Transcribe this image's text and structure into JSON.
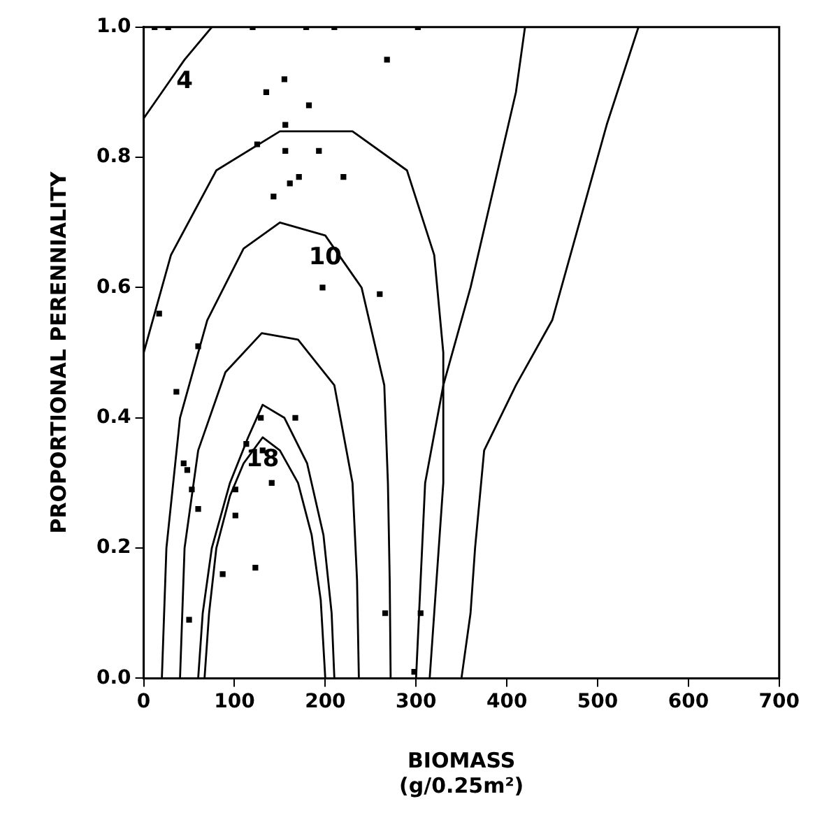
{
  "chart_data": {
    "type": "scatter",
    "xlabel": "BIOMASS\n(g/0.25m²)",
    "ylabel": "PROPORTIONAL PERENNIALITY",
    "xlim": [
      0,
      700
    ],
    "xticks": [
      0,
      100,
      200,
      300,
      400,
      500,
      600,
      700
    ],
    "ylim": [
      0,
      1
    ],
    "yticks": [
      {
        "value": 0,
        "label": "0.0"
      },
      0.2,
      0.4,
      0.6,
      0.8,
      {
        "value": 1,
        "label": "1.0"
      }
    ],
    "grid": false,
    "legend": false,
    "marker": "square",
    "series": [
      {
        "color": "#000000",
        "x": [
          12,
          27,
          120,
          179,
          210,
          302,
          268,
          155,
          135,
          182,
          156,
          125,
          156,
          193,
          171,
          220,
          161,
          143,
          197,
          260,
          17,
          60,
          36,
          129,
          167,
          113,
          131,
          44,
          48,
          141,
          53,
          101,
          60,
          101,
          87,
          123,
          266,
          305,
          50,
          298
        ],
        "values": [
          1.0,
          1.0,
          1.0,
          1.0,
          1.0,
          1.0,
          0.95,
          0.92,
          0.9,
          0.88,
          0.85,
          0.82,
          0.81,
          0.81,
          0.77,
          0.77,
          0.76,
          0.74,
          0.6,
          0.59,
          0.56,
          0.51,
          0.44,
          0.4,
          0.4,
          0.36,
          0.35,
          0.33,
          0.32,
          0.3,
          0.29,
          0.29,
          0.26,
          0.25,
          0.16,
          0.17,
          0.1,
          0.1,
          0.09,
          0.01
        ]
      },
      {
        "type": "line",
        "name": "18",
        "marker": "none",
        "color": "#000000",
        "x": [
          67,
          72,
          80,
          95,
          110,
          131,
          150,
          170,
          185,
          195,
          200
        ],
        "values": [
          0,
          0.1,
          0.2,
          0.28,
          0.33,
          0.37,
          0.35,
          0.3,
          0.22,
          0.12,
          0
        ]
      },
      {
        "type": "line",
        "marker": "none",
        "color": "#000000",
        "x": [
          60,
          65,
          75,
          95,
          115,
          131,
          155,
          180,
          198,
          207,
          210
        ],
        "values": [
          0,
          0.1,
          0.2,
          0.3,
          0.37,
          0.42,
          0.4,
          0.33,
          0.22,
          0.1,
          0
        ]
      },
      {
        "type": "line",
        "marker": "none",
        "color": "#000000",
        "x": [
          40,
          45,
          60,
          90,
          130,
          170,
          210,
          230,
          235,
          237
        ],
        "values": [
          0,
          0.2,
          0.35,
          0.47,
          0.53,
          0.52,
          0.45,
          0.3,
          0.15,
          0
        ]
      },
      {
        "type": "line",
        "name": "10",
        "marker": "none",
        "color": "#000000",
        "x": [
          20,
          25,
          40,
          70,
          110,
          150,
          200,
          240,
          265,
          269,
          271,
          272
        ],
        "values": [
          0,
          0.2,
          0.4,
          0.55,
          0.66,
          0.7,
          0.68,
          0.6,
          0.45,
          0.3,
          0.15,
          0
        ]
      },
      {
        "type": "line",
        "marker": "none",
        "color": "#000000",
        "x": [
          0,
          30,
          80,
          150,
          230,
          290,
          320,
          330,
          330,
          320,
          315
        ],
        "values": [
          0.5,
          0.65,
          0.78,
          0.84,
          0.84,
          0.78,
          0.65,
          0.5,
          0.3,
          0.1,
          0
        ]
      },
      {
        "type": "line",
        "name": "4",
        "marker": "none",
        "color": "#000000",
        "x": [
          0,
          20,
          45,
          75
        ],
        "values": [
          0.86,
          0.9,
          0.95,
          1.0
        ]
      },
      {
        "type": "line",
        "marker": "none",
        "color": "#000000",
        "x": [
          300,
          305,
          310,
          330,
          360,
          385,
          410,
          420
        ],
        "values": [
          0,
          0.15,
          0.3,
          0.45,
          0.6,
          0.75,
          0.9,
          1.0
        ]
      },
      {
        "type": "line",
        "marker": "none",
        "color": "#000000",
        "x": [
          350,
          360,
          365,
          375,
          410,
          450,
          480,
          510,
          545
        ],
        "values": [
          0,
          0.1,
          0.2,
          0.35,
          0.45,
          0.55,
          0.7,
          0.85,
          1.0
        ]
      }
    ]
  }
}
